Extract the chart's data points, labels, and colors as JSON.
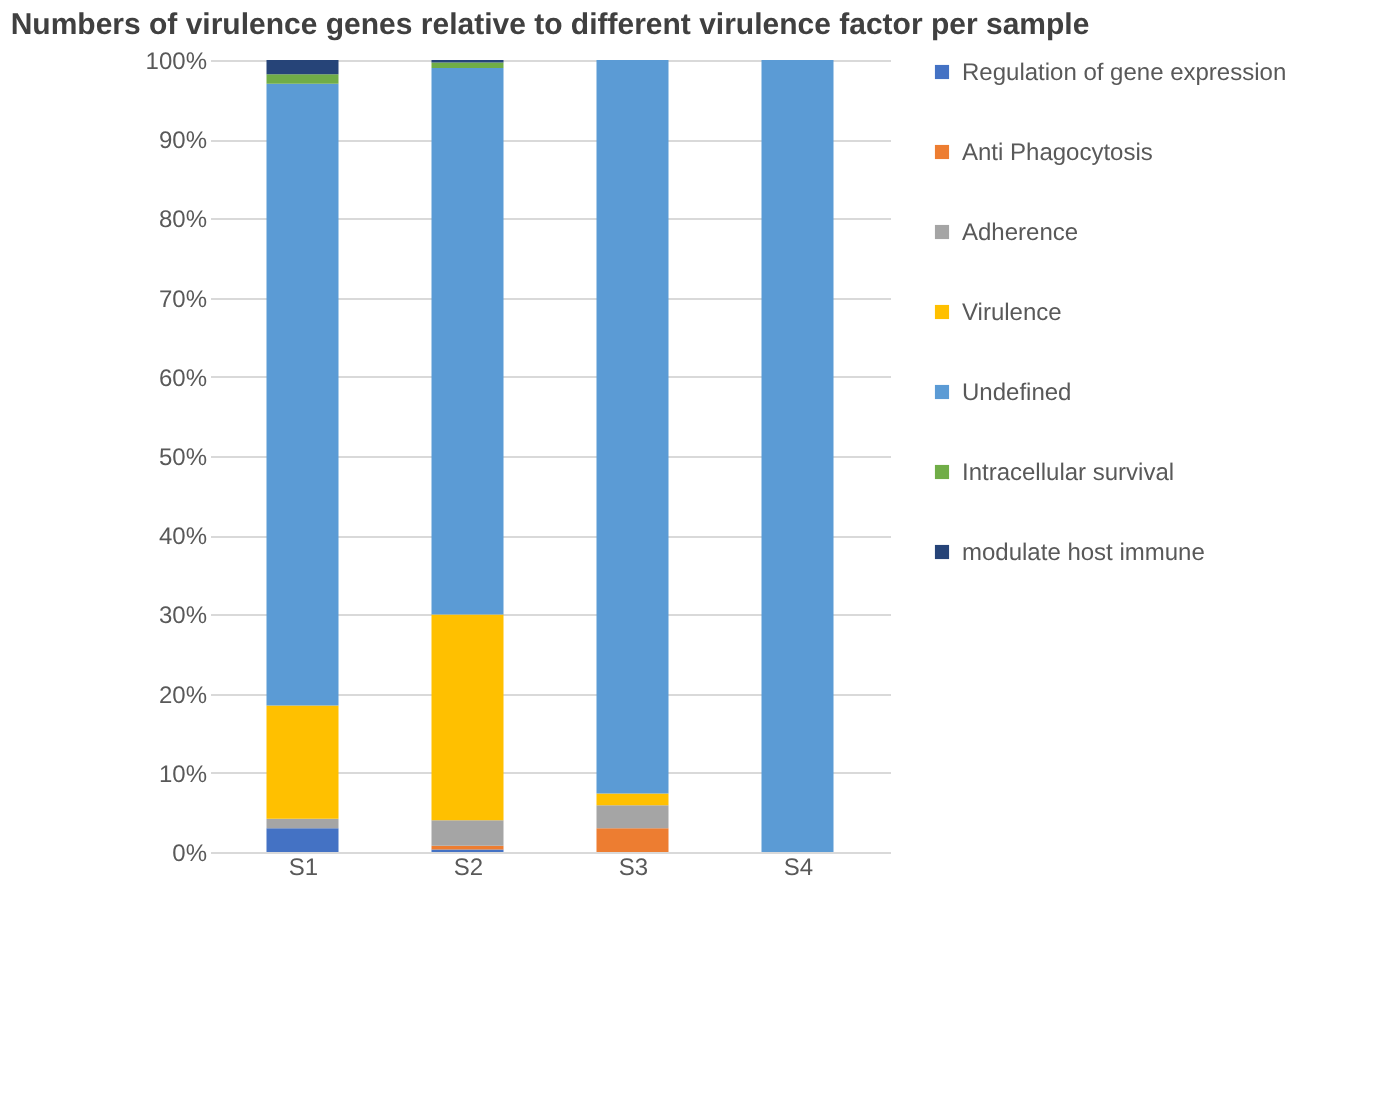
{
  "chart_data": {
    "type": "bar",
    "stacked": true,
    "title": "Numbers of virulence genes relative to different virulence factor per sample",
    "categories": [
      "S1",
      "S2",
      "S3",
      "S4"
    ],
    "series": [
      {
        "name": "Regulation of gene expression",
        "color": "#4472c4",
        "values": [
          3,
          0.3,
          0,
          0
        ]
      },
      {
        "name": "Anti Phagocytosis",
        "color": "#ed7d31",
        "values": [
          0,
          0.5,
          3,
          0
        ]
      },
      {
        "name": "Adherence",
        "color": "#a5a5a5",
        "values": [
          1.2,
          3.2,
          2.9,
          0
        ]
      },
      {
        "name": "Virulence",
        "color": "#ffc000",
        "values": [
          14.3,
          26,
          1.5,
          0
        ]
      },
      {
        "name": "Undefined",
        "color": "#5b9bd5",
        "values": [
          78.5,
          69,
          92.6,
          100
        ]
      },
      {
        "name": "Intracellular survival",
        "color": "#70ad47",
        "values": [
          1.2,
          0.7,
          0,
          0
        ]
      },
      {
        "name": "modulate host immune",
        "color": "#264478",
        "values": [
          1.8,
          0.3,
          0,
          0
        ]
      }
    ],
    "ylim": [
      0,
      100
    ],
    "yticks": [
      {
        "value": 0,
        "label": "0%"
      },
      {
        "value": 10,
        "label": "10%"
      },
      {
        "value": 20,
        "label": "20%"
      },
      {
        "value": 30,
        "label": "30%"
      },
      {
        "value": 40,
        "label": "40%"
      },
      {
        "value": 50,
        "label": "50%"
      },
      {
        "value": 60,
        "label": "60%"
      },
      {
        "value": 70,
        "label": "70%"
      },
      {
        "value": 80,
        "label": "80%"
      },
      {
        "value": 90,
        "label": "90%"
      },
      {
        "value": 100,
        "label": "100%"
      }
    ],
    "grid": "y",
    "legend": "right"
  }
}
